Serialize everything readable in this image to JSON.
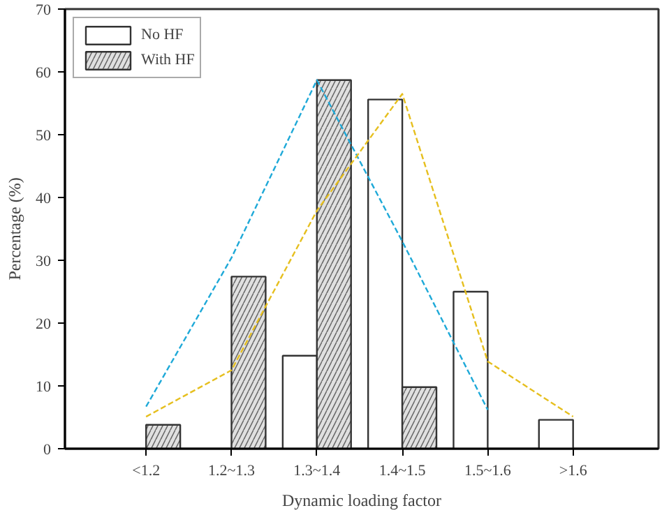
{
  "chart_data": {
    "type": "bar",
    "xlabel": "Dynamic loading factor",
    "ylabel": "Percentage (%)",
    "categories": [
      "<1.2",
      "1.2~1.3",
      "1.3~1.4",
      "1.4~1.5",
      "1.5~1.6",
      ">1.6"
    ],
    "ylim": [
      0,
      70
    ],
    "yticks": [
      0,
      10,
      20,
      30,
      40,
      50,
      60,
      70
    ],
    "grid": false,
    "legend": "top left",
    "series": [
      {
        "name": "No HF",
        "color": "#ffffff",
        "values": [
          null,
          null,
          14.8,
          55.6,
          25,
          4.6
        ]
      },
      {
        "name": "With HF",
        "color": "#e0e0e0",
        "values": [
          3.8,
          27.4,
          58.7,
          9.8,
          null,
          null
        ]
      },
      {
        "type": "line",
        "color": "#1ea9d8",
        "line_style": "dashed",
        "marker": "none",
        "values": [
          6.7,
          30.4,
          58.7,
          33,
          6.2,
          null
        ]
      },
      {
        "type": "line",
        "color": "#e6bf1e",
        "line_style": "dashed",
        "marker": "none",
        "values": [
          5.1,
          12.5,
          37.9,
          56.5,
          13.9,
          5.1
        ]
      }
    ]
  }
}
